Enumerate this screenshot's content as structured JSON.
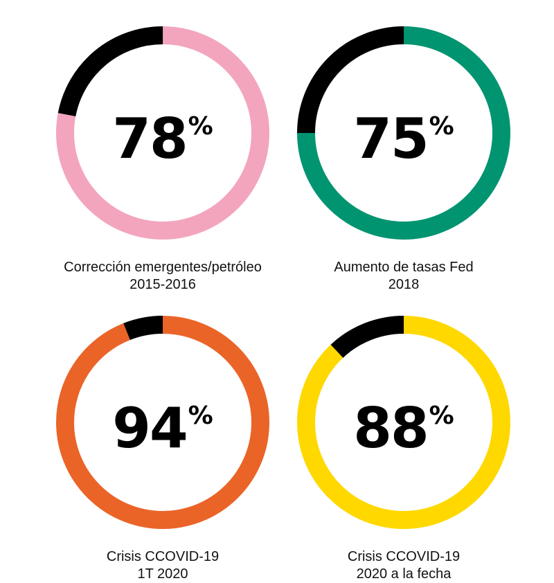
{
  "chart_data": [
    {
      "type": "pie",
      "value": 78,
      "value_text": "78",
      "unit": "%",
      "color": "#f3a5be",
      "remainder_color": "#000000",
      "label_line1": "Corrección emergentes/petróleo",
      "label_line2": "2015-2016"
    },
    {
      "type": "pie",
      "value": 75,
      "value_text": "75",
      "unit": "%",
      "color": "#009470",
      "remainder_color": "#000000",
      "label_line1": "Aumento de tasas Fed",
      "label_line2": "2018"
    },
    {
      "type": "pie",
      "value": 94,
      "value_text": "94",
      "unit": "%",
      "color": "#ea6428",
      "remainder_color": "#000000",
      "label_line1": "Crisis CCOVID-19",
      "label_line2": "1T 2020"
    },
    {
      "type": "pie",
      "value": 88,
      "value_text": "88",
      "unit": "%",
      "color": "#ffd800",
      "remainder_color": "#000000",
      "label_line1": "Crisis CCOVID-19",
      "label_line2": "2020 a la fecha"
    }
  ]
}
